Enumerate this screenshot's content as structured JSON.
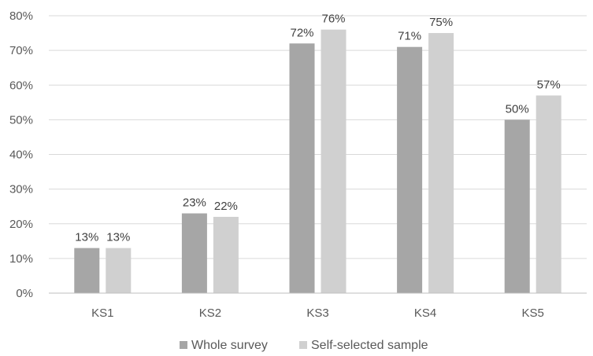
{
  "chart_data": {
    "type": "bar",
    "title": "",
    "xlabel": "",
    "ylabel": "",
    "categories": [
      "KS1",
      "KS2",
      "KS3",
      "KS4",
      "KS5"
    ],
    "series": [
      {
        "name": "Whole survey",
        "values": [
          0.13,
          0.23,
          0.72,
          0.71,
          0.5
        ],
        "data_labels": [
          "13%",
          "23%",
          "72%",
          "71%",
          "50%"
        ],
        "color": "#a6a6a6"
      },
      {
        "name": "Self-selected sample",
        "values": [
          0.13,
          0.22,
          0.76,
          0.75,
          0.57
        ],
        "data_labels": [
          "13%",
          "22%",
          "76%",
          "75%",
          "57%"
        ],
        "color": "#d0d0d0"
      }
    ],
    "ylim": [
      0,
      0.8
    ],
    "y_ticks": [
      0,
      0.1,
      0.2,
      0.3,
      0.4,
      0.5,
      0.6,
      0.7,
      0.8
    ],
    "y_tick_labels": [
      "0%",
      "10%",
      "20%",
      "30%",
      "40%",
      "50%",
      "60%",
      "70%",
      "80%"
    ],
    "grid": true,
    "legend_position": "bottom"
  }
}
